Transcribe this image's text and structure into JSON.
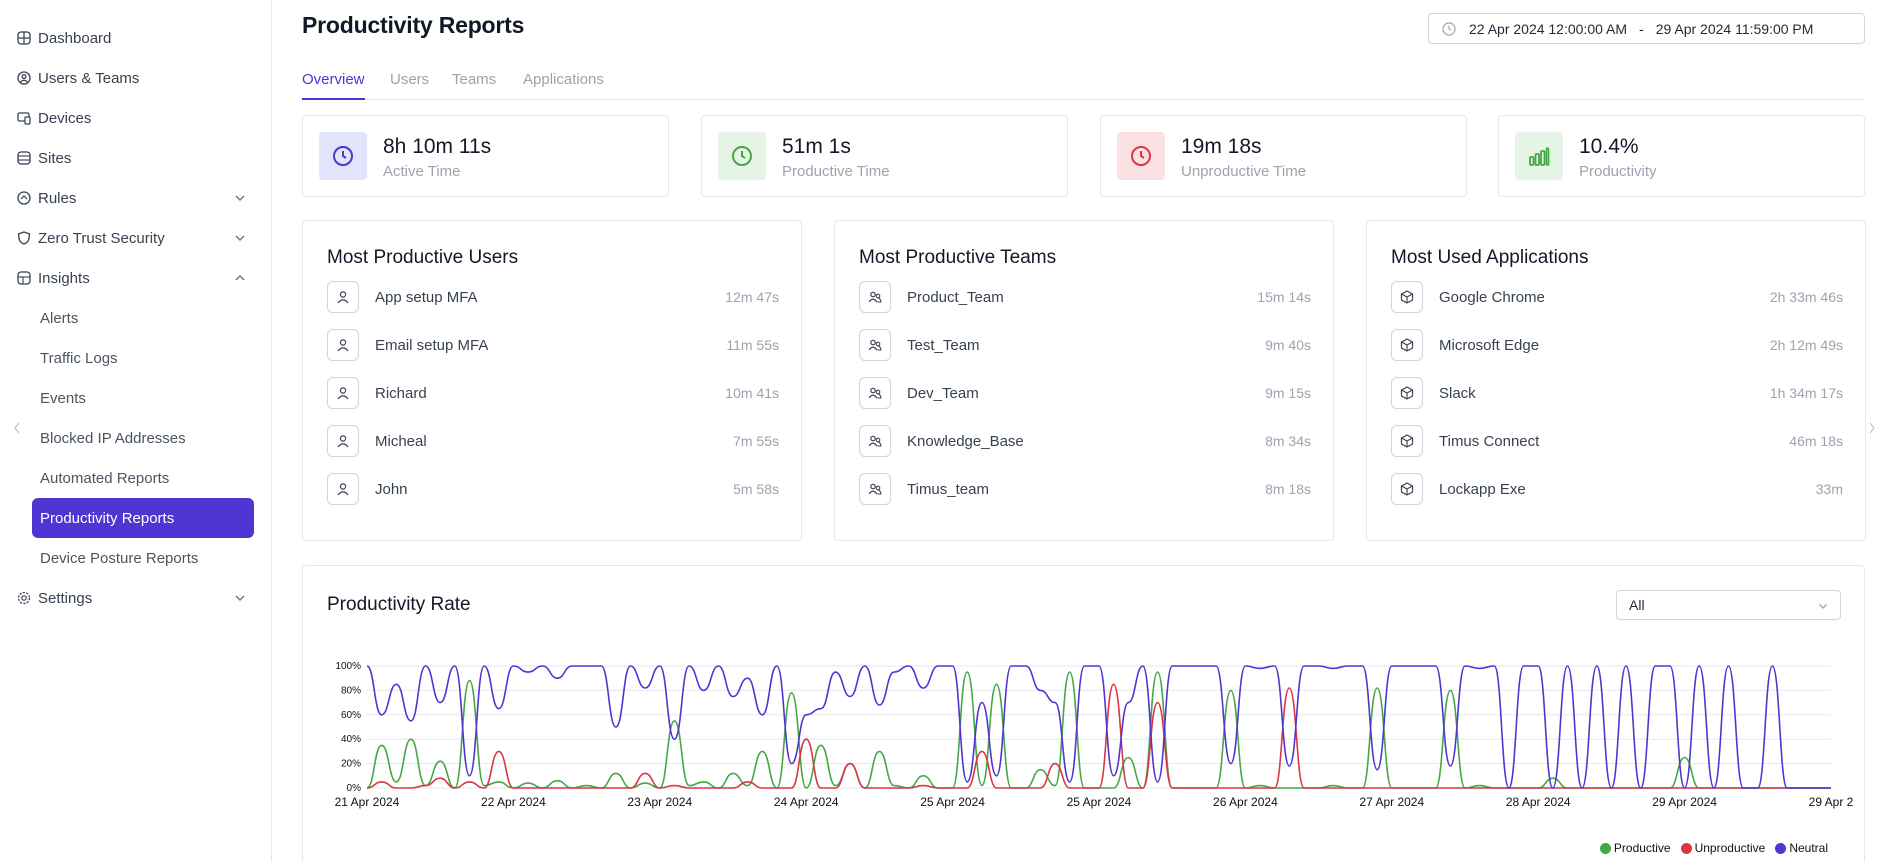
{
  "sidebar": {
    "items": [
      {
        "label": "Dashboard",
        "icon": "dashboard-icon"
      },
      {
        "label": "Users & Teams",
        "icon": "user-circle-icon"
      },
      {
        "label": "Devices",
        "icon": "devices-icon"
      },
      {
        "label": "Sites",
        "icon": "sites-icon"
      },
      {
        "label": "Rules",
        "icon": "rules-icon"
      },
      {
        "label": "Zero Trust Security",
        "icon": "shield-icon"
      },
      {
        "label": "Insights",
        "icon": "insights-icon"
      }
    ],
    "insights_sub": [
      "Alerts",
      "Traffic Logs",
      "Events",
      "Blocked IP Addresses",
      "Automated Reports",
      "Productivity Reports",
      "Device Posture Reports"
    ],
    "settings_label": "Settings"
  },
  "header": {
    "title": "Productivity Reports",
    "date_start": "22 Apr 2024 12:00:00 AM",
    "date_sep": "-",
    "date_end": "29 Apr 2024 11:59:00 PM"
  },
  "tabs": [
    "Overview",
    "Users",
    "Teams",
    "Applications"
  ],
  "stats": [
    {
      "value": "8h 10m 11s",
      "label": "Active Time",
      "color": "#4f35d2",
      "bg": "#e3e3fb",
      "icon": "clock-icon"
    },
    {
      "value": "51m 1s",
      "label": "Productive Time",
      "color": "#45a745",
      "bg": "#e6f4e6",
      "icon": "clock-icon"
    },
    {
      "value": "19m 18s",
      "label": "Unproductive Time",
      "color": "#dc3545",
      "bg": "#fbe1e1",
      "icon": "clock-icon"
    },
    {
      "value": "10.4%",
      "label": "Productivity",
      "color": "#45a745",
      "bg": "#e6f4e6",
      "icon": "bar-chart-icon"
    }
  ],
  "lists": [
    {
      "title": "Most Productive Users",
      "icon": "user-icon",
      "rows": [
        {
          "name": "App setup MFA",
          "value": "12m 47s"
        },
        {
          "name": "Email setup MFA",
          "value": "11m 55s"
        },
        {
          "name": "Richard",
          "value": "10m 41s"
        },
        {
          "name": "Micheal",
          "value": "7m 55s"
        },
        {
          "name": "John",
          "value": "5m 58s"
        }
      ]
    },
    {
      "title": "Most Productive Teams",
      "icon": "team-icon",
      "rows": [
        {
          "name": "Product_Team",
          "value": "15m 14s"
        },
        {
          "name": "Test_Team",
          "value": "9m 40s"
        },
        {
          "name": "Dev_Team",
          "value": "9m 15s"
        },
        {
          "name": "Knowledge_Base",
          "value": "8m 34s"
        },
        {
          "name": "Timus_team",
          "value": "8m 18s"
        }
      ]
    },
    {
      "title": "Most Used Applications",
      "icon": "cube-icon",
      "rows": [
        {
          "name": "Google Chrome",
          "value": "2h 33m 46s"
        },
        {
          "name": "Microsoft Edge",
          "value": "2h 12m 49s"
        },
        {
          "name": "Slack",
          "value": "1h 34m 17s"
        },
        {
          "name": "Timus Connect",
          "value": "46m 18s"
        },
        {
          "name": "Lockapp Exe",
          "value": "33m"
        }
      ]
    }
  ],
  "chart": {
    "title": "Productivity Rate",
    "filter_value": "All"
  },
  "chart_data": {
    "type": "line",
    "title": "Productivity Rate",
    "xlabel": "",
    "ylabel": "",
    "ylim": [
      0,
      100
    ],
    "y_ticks": [
      "0%",
      "20%",
      "40%",
      "60%",
      "80%",
      "100%"
    ],
    "x_ticks": [
      "21 Apr 2024",
      "22 Apr 2024",
      "23 Apr 2024",
      "24 Apr 2024",
      "25 Apr 2024",
      "25 Apr 2024",
      "26 Apr 2024",
      "27 Apr 2024",
      "28 Apr 2024",
      "29 Apr 2024",
      "29 Apr 2"
    ],
    "x": [
      0,
      0.1,
      0.2,
      0.3,
      0.4,
      0.5,
      0.6,
      0.7,
      0.8,
      0.9,
      1.0,
      1.1,
      1.2,
      1.3,
      1.4,
      1.5,
      1.6,
      1.7,
      1.8,
      1.9,
      2.0,
      2.1,
      2.2,
      2.3,
      2.4,
      2.5,
      2.6,
      2.7,
      2.8,
      2.9,
      3.0,
      3.1,
      3.2,
      3.3,
      3.4,
      3.5,
      3.6,
      3.7,
      3.8,
      3.9,
      4.0,
      4.1,
      4.2,
      4.3,
      4.4,
      4.5,
      4.6,
      4.7,
      4.8,
      4.9,
      5.0,
      5.1,
      5.2,
      5.3,
      5.4,
      5.5,
      5.6,
      5.7,
      5.8,
      5.9,
      6.0,
      6.1,
      6.2,
      6.3,
      6.4,
      6.5,
      6.6,
      6.7,
      6.8,
      6.9,
      7.0,
      7.1,
      7.2,
      7.3,
      7.4,
      7.5,
      7.6,
      7.7,
      7.8,
      7.9,
      8.0,
      8.1,
      8.2,
      8.3,
      8.4,
      8.5,
      8.6,
      8.7,
      8.8,
      8.9,
      9.0,
      9.1,
      9.2,
      9.3,
      9.4,
      9.5,
      9.6,
      9.7,
      9.8,
      9.9,
      10.0
    ],
    "series": [
      {
        "name": "Productive",
        "color": "#45a745",
        "values": [
          0,
          35,
          5,
          40,
          2,
          22,
          0,
          88,
          2,
          5,
          0,
          4,
          0,
          6,
          0,
          2,
          0,
          12,
          0,
          4,
          0,
          55,
          2,
          5,
          0,
          12,
          2,
          30,
          0,
          78,
          0,
          35,
          2,
          20,
          0,
          30,
          2,
          0,
          10,
          0,
          0,
          95,
          2,
          85,
          0,
          0,
          15,
          2,
          95,
          0,
          0,
          0,
          25,
          0,
          95,
          0,
          0,
          0,
          0,
          80,
          0,
          2,
          0,
          0,
          0,
          0,
          2,
          0,
          0,
          82,
          0,
          0,
          0,
          0,
          80,
          0,
          2,
          0,
          0,
          0,
          0,
          8,
          0,
          0,
          0,
          0,
          0,
          0,
          0,
          0,
          25,
          0,
          0,
          0,
          0,
          0,
          0,
          0,
          0,
          0,
          0
        ]
      },
      {
        "name": "Unproductive",
        "color": "#dc3545",
        "values": [
          0,
          5,
          0,
          0,
          2,
          8,
          0,
          5,
          0,
          30,
          0,
          0,
          0,
          0,
          0,
          0,
          0,
          0,
          0,
          12,
          0,
          2,
          0,
          0,
          0,
          0,
          5,
          0,
          0,
          0,
          40,
          0,
          0,
          20,
          0,
          0,
          0,
          0,
          2,
          0,
          0,
          0,
          30,
          0,
          0,
          0,
          0,
          20,
          0,
          0,
          0,
          85,
          0,
          0,
          70,
          0,
          0,
          0,
          0,
          0,
          0,
          0,
          0,
          82,
          0,
          0,
          0,
          0,
          0,
          0,
          0,
          0,
          0,
          0,
          0,
          0,
          0,
          0,
          0,
          0,
          0,
          0,
          0,
          0,
          0,
          0,
          0,
          0,
          0,
          0,
          0,
          0,
          0,
          0,
          0,
          0,
          0,
          0,
          0,
          0,
          0
        ]
      },
      {
        "name": "Neutral",
        "color": "#4f35d2",
        "values": [
          100,
          60,
          85,
          55,
          100,
          70,
          100,
          10,
          100,
          65,
          100,
          95,
          100,
          90,
          100,
          100,
          100,
          50,
          100,
          82,
          100,
          40,
          100,
          80,
          100,
          75,
          90,
          60,
          100,
          20,
          60,
          65,
          95,
          75,
          100,
          68,
          95,
          100,
          82,
          100,
          100,
          5,
          70,
          10,
          100,
          100,
          80,
          70,
          5,
          100,
          100,
          10,
          70,
          100,
          5,
          100,
          100,
          100,
          100,
          20,
          100,
          98,
          100,
          18,
          100,
          100,
          98,
          100,
          100,
          15,
          100,
          100,
          100,
          100,
          18,
          100,
          98,
          100,
          0,
          100,
          100,
          0,
          100,
          0,
          100,
          0,
          100,
          0,
          100,
          100,
          0,
          100,
          0,
          100,
          0,
          0,
          100,
          0,
          0,
          0,
          0
        ]
      }
    ],
    "legend": "bottom-right"
  }
}
